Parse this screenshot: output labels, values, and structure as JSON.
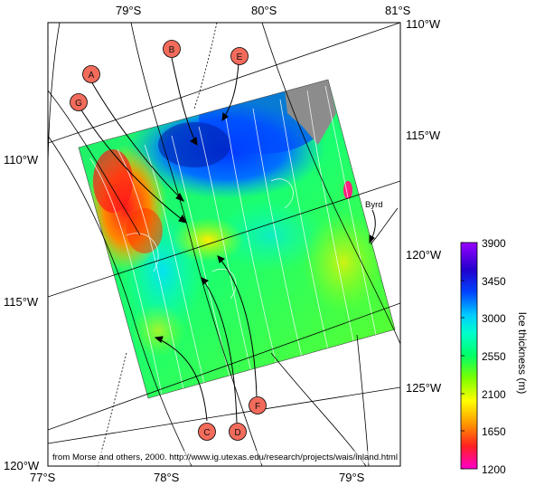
{
  "axes": {
    "top_labels": [
      "79°S",
      "80°S",
      "81°S"
    ],
    "right_labels": [
      "110°W",
      "115°W",
      "120°W",
      "125°W"
    ],
    "left_labels": [
      "110°W",
      "115°W",
      "120°W"
    ],
    "bottom_labels": [
      "77°S",
      "78°S",
      "79°S"
    ]
  },
  "markers": [
    "A",
    "B",
    "E",
    "G",
    "C",
    "D",
    "F"
  ],
  "place_label": "Byrd",
  "colorbar": {
    "title": "Ice thickness (m)",
    "ticks": [
      "3900",
      "3450",
      "3000",
      "2550",
      "2100",
      "1650",
      "1200"
    ],
    "min": 1200,
    "max": 3900,
    "colors": [
      "#ff00cc",
      "#ff2020",
      "#ff9900",
      "#ffff00",
      "#7cff00",
      "#00ff66",
      "#00ffcc",
      "#00ccff",
      "#0044ff",
      "#2200cc",
      "#9900ff"
    ]
  },
  "credit": "from Morse and others, 2000. http://www.ig.utexas.edu/research/projects/wais/inland.html",
  "colors": {
    "marker_fill": "#f26b5b",
    "missing_data": "#8c8c8c"
  }
}
